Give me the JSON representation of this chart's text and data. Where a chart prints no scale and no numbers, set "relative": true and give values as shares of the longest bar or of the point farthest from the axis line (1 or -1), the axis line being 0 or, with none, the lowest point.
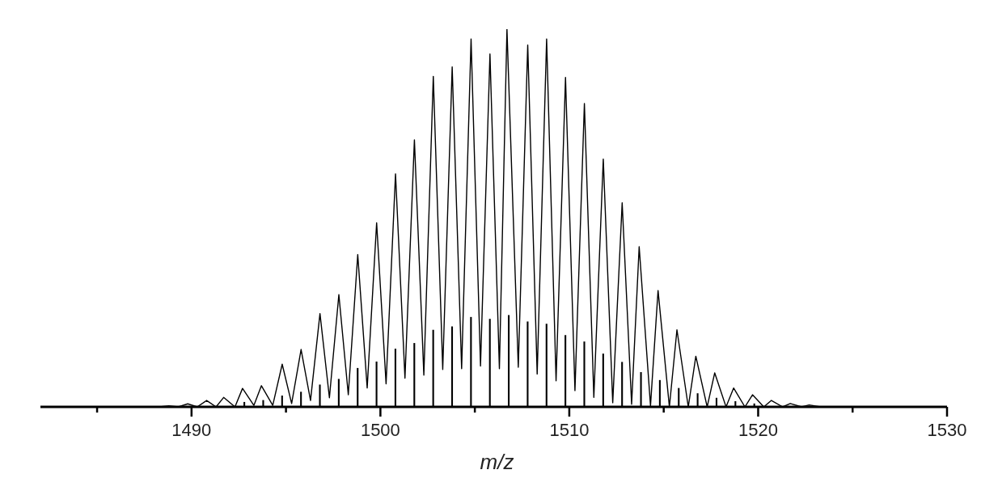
{
  "chart_data": {
    "type": "line",
    "xlabel": "m/z",
    "relative": true,
    "xlim": [
      1482,
      1530
    ],
    "xticks": [
      {
        "value": 1485,
        "label": null
      },
      1490,
      {
        "value": 1495,
        "label": null
      },
      1500,
      {
        "value": 1505,
        "label": null
      },
      1510,
      {
        "value": 1515,
        "label": null
      },
      1520,
      {
        "value": 1525,
        "label": null
      },
      1530
    ],
    "grid": false,
    "marker": "none",
    "line_style": "solid",
    "series": [
      {
        "color": "#000000",
        "x": [
          1487,
          1488.3,
          1488.8,
          1489.3,
          1489.8,
          1490.3,
          1490.8,
          1491.3,
          1491.7,
          1492.3,
          1492.7,
          1493.3,
          1493.7,
          1494.3,
          1494.8,
          1495.3,
          1495.8,
          1496.3,
          1496.8,
          1497.3,
          1497.8,
          1498.3,
          1498.8,
          1499.3,
          1499.8,
          1500.3,
          1500.8,
          1501.3,
          1501.8,
          1502.3,
          1502.8,
          1503.3,
          1503.8,
          1504.3,
          1504.8,
          1505.3,
          1505.8,
          1506.3,
          1506.7,
          1507.3,
          1507.8,
          1508.3,
          1508.8,
          1509.3,
          1509.8,
          1510.3,
          1510.8,
          1511.3,
          1511.8,
          1512.3,
          1512.8,
          1513.3,
          1513.7,
          1514.3,
          1514.7,
          1515.3,
          1515.7,
          1516.3,
          1516.7,
          1517.3,
          1517.7,
          1518.3,
          1518.7,
          1519.3,
          1519.7,
          1520.3,
          1520.7,
          1521.3,
          1521.7,
          1522.3,
          1522.7,
          1523.3,
          1525
        ],
        "values": [
          0,
          0,
          0.003,
          0,
          0.008,
          0,
          0.017,
          0,
          0.025,
          0,
          0.049,
          0.004,
          0.056,
          0.004,
          0.113,
          0.009,
          0.152,
          0.017,
          0.247,
          0.024,
          0.297,
          0.032,
          0.403,
          0.05,
          0.487,
          0.061,
          0.617,
          0.076,
          0.707,
          0.084,
          0.875,
          0.099,
          0.9,
          0.101,
          0.974,
          0.108,
          0.934,
          0.101,
          1.0,
          0.105,
          0.958,
          0.087,
          0.974,
          0.069,
          0.872,
          0.043,
          0.803,
          0.025,
          0.656,
          0.011,
          0.54,
          0.007,
          0.424,
          0.003,
          0.308,
          0,
          0.204,
          0,
          0.134,
          0,
          0.09,
          0,
          0.05,
          0,
          0.032,
          0,
          0.017,
          0,
          0.009,
          0,
          0.005,
          0,
          0
        ]
      },
      {
        "type": "bar",
        "color": "#000000",
        "x": [
          1492.8,
          1493.8,
          1494.8,
          1495.8,
          1496.8,
          1497.8,
          1498.8,
          1499.8,
          1500.8,
          1501.8,
          1502.8,
          1503.8,
          1504.8,
          1505.8,
          1506.8,
          1507.8,
          1508.8,
          1509.8,
          1510.8,
          1511.8,
          1512.8,
          1513.8,
          1514.8,
          1515.8,
          1516.8,
          1517.8,
          1518.8,
          1519.8
        ],
        "values": [
          0.013,
          0.018,
          0.03,
          0.04,
          0.059,
          0.074,
          0.103,
          0.12,
          0.154,
          0.169,
          0.204,
          0.213,
          0.238,
          0.233,
          0.243,
          0.226,
          0.22,
          0.19,
          0.173,
          0.141,
          0.119,
          0.092,
          0.071,
          0.05,
          0.036,
          0.024,
          0.015,
          0.009
        ]
      }
    ]
  }
}
